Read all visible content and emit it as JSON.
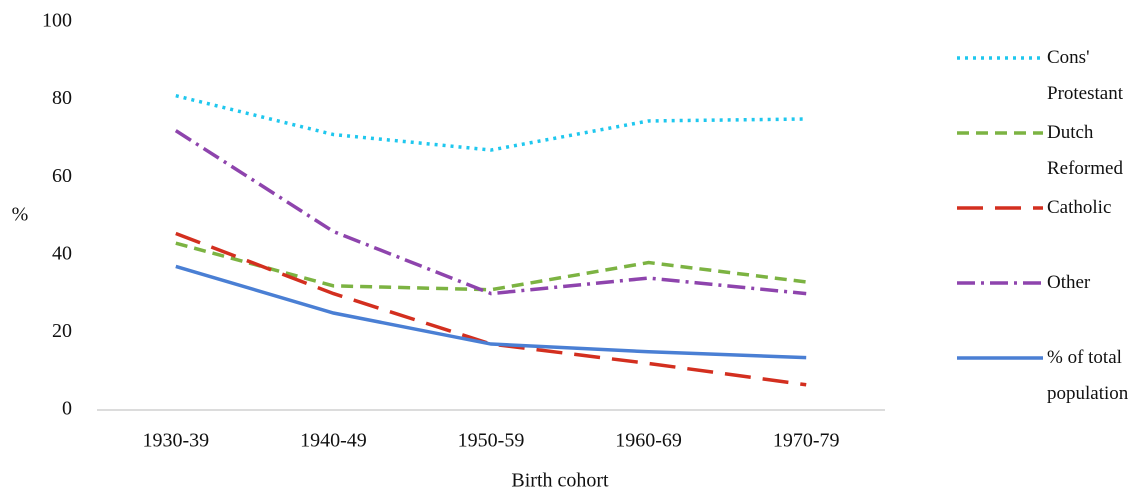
{
  "chart_data": {
    "type": "line",
    "x_label": "Birth cohort",
    "y_label": "%",
    "categories": [
      "1930-39",
      "1940-49",
      "1950-59",
      "1960-69",
      "1970-79"
    ],
    "ylim": [
      0,
      100
    ],
    "yticks": [
      0,
      20,
      40,
      60,
      80,
      100
    ],
    "grid": false,
    "series": [
      {
        "name": "Cons' Protestant",
        "color": "#1fc7ee",
        "dash": "3 5",
        "values": [
          81,
          71,
          67,
          74.5,
          75
        ]
      },
      {
        "name": "Dutch Reformed",
        "color": "#7cb342",
        "dash": "12 7",
        "values": [
          43,
          32,
          31,
          38,
          33
        ]
      },
      {
        "name": "Catholic",
        "color": "#d32f1f",
        "dash": "26 12",
        "values": [
          45.5,
          30,
          17,
          12,
          6.5
        ]
      },
      {
        "name": "Other",
        "color": "#8e44ad",
        "dash": "18 6 3 6",
        "values": [
          72,
          46,
          30,
          34,
          30
        ]
      },
      {
        "name": "% of total population",
        "color": "#4a7fd4",
        "dash": "",
        "values": [
          37,
          25,
          17,
          15,
          13.5
        ]
      }
    ]
  }
}
